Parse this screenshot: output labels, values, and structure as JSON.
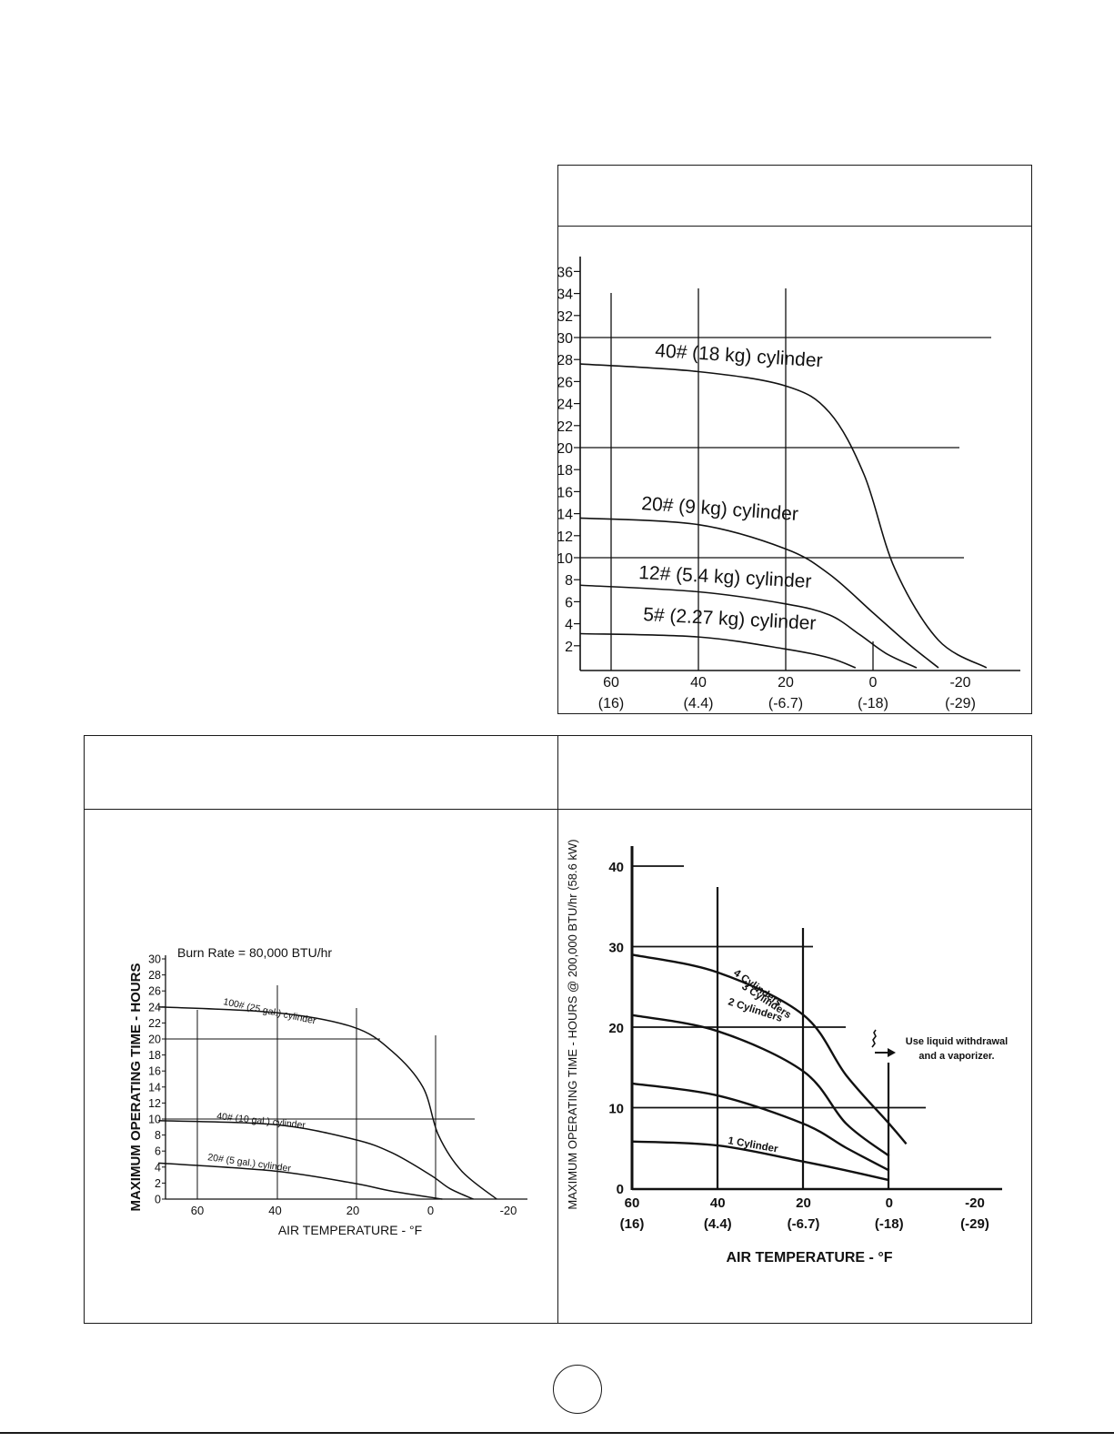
{
  "chart_data": [
    {
      "type": "line",
      "title": "",
      "xlabel": "",
      "ylabel": "",
      "x_ticks": [
        "60",
        "40",
        "20",
        "0",
        "-20"
      ],
      "x_ticks_c": [
        "(16)",
        "(4.4)",
        "(-6.7)",
        "(-18)",
        "(-29)"
      ],
      "y_ticks": [
        "36",
        "34",
        "32",
        "30",
        "28",
        "26",
        "24",
        "22",
        "20",
        "18",
        "16",
        "14",
        "12",
        "10",
        "8",
        "6",
        "4",
        "2"
      ],
      "xlim": [
        67,
        -33
      ],
      "ylim": [
        0,
        36
      ],
      "series": [
        {
          "name": "40# (18 kg) cylinder",
          "x": [
            67,
            40,
            20,
            10,
            2,
            -5,
            -15,
            -26
          ],
          "y": [
            27.6,
            26.9,
            25.6,
            23.2,
            17.5,
            9,
            2.5,
            0
          ]
        },
        {
          "name": "20# (9 kg) cylinder",
          "x": [
            67,
            40,
            20,
            10,
            0,
            -8,
            -15
          ],
          "y": [
            13.6,
            13,
            10.8,
            8.5,
            5,
            2.2,
            0
          ]
        },
        {
          "name": "12# (5.4 kg) cylinder",
          "x": [
            67,
            40,
            20,
            10,
            3,
            -3,
            -10
          ],
          "y": [
            7.5,
            6.9,
            5.8,
            4.8,
            3,
            1.3,
            0
          ]
        },
        {
          "name": "5# (2.27 kg) cylinder",
          "x": [
            67,
            40,
            20,
            10,
            4
          ],
          "y": [
            3.1,
            2.8,
            1.7,
            0.9,
            0
          ]
        }
      ]
    },
    {
      "type": "line",
      "title": "Burn Rate = 80,000 BTU/hr",
      "xlabel": "AIR TEMPERATURE - °F",
      "ylabel": "MAXIMUM OPERATING TIME - HOURS",
      "x_ticks": [
        "60",
        "40",
        "20",
        "0",
        "-20"
      ],
      "y_ticks": [
        "30",
        "28",
        "26",
        "24",
        "22",
        "20",
        "18",
        "16",
        "14",
        "12",
        "10",
        "8",
        "6",
        "4",
        "2",
        "0"
      ],
      "xlim": [
        70,
        -25
      ],
      "ylim": [
        0,
        30
      ],
      "series": [
        {
          "name": "100# (25 gal.) cylinder",
          "x": [
            70,
            40,
            20,
            10,
            2,
            -2,
            -8,
            -17
          ],
          "y": [
            24,
            23.3,
            21.5,
            18.5,
            14,
            8,
            3.5,
            0
          ]
        },
        {
          "name": "40# (10 gal.) cylinder",
          "x": [
            70,
            40,
            20,
            10,
            0,
            -5,
            -11
          ],
          "y": [
            9.8,
            9.3,
            7.5,
            5.8,
            3,
            1.3,
            0
          ]
        },
        {
          "name": "20# (5 gal.) cylinder",
          "x": [
            70,
            40,
            20,
            10,
            -3
          ],
          "y": [
            4.5,
            3.5,
            2,
            1,
            0
          ]
        }
      ]
    },
    {
      "type": "line",
      "title": "",
      "xlabel": "AIR TEMPERATURE - °F",
      "ylabel": "MAXIMUM OPERATING TIME - HOURS @ 200,000 BTU/hr (58.6 kW)",
      "annotation": "Use liquid withdrawal and a vaporizer.",
      "x_ticks": [
        "60",
        "40",
        "20",
        "0",
        "-20"
      ],
      "x_ticks_c": [
        "(16)",
        "(4.4)",
        "(-6.7)",
        "(-18)",
        "(-29)"
      ],
      "y_ticks": [
        "40",
        "30",
        "20",
        "10",
        "0"
      ],
      "xlim": [
        60,
        -27
      ],
      "ylim": [
        0,
        42
      ],
      "series": [
        {
          "name": "4 Cylinders",
          "x": [
            60,
            40,
            20,
            10,
            0,
            -4
          ],
          "y": [
            29,
            26.8,
            21.5,
            14,
            8,
            5.5
          ]
        },
        {
          "name": "3 Cylinders",
          "x": [
            60,
            40,
            20,
            10,
            0
          ],
          "y": [
            21.5,
            19.5,
            14.5,
            8,
            4
          ]
        },
        {
          "name": "2 Cylinders",
          "x": [
            60,
            40,
            20,
            10,
            0
          ],
          "y": [
            13,
            11.5,
            8,
            5,
            2.2
          ]
        },
        {
          "name": "1 Cylinder",
          "x": [
            60,
            40,
            20,
            10,
            0
          ],
          "y": [
            5.8,
            5.3,
            3.3,
            2.2,
            1
          ]
        }
      ]
    }
  ]
}
